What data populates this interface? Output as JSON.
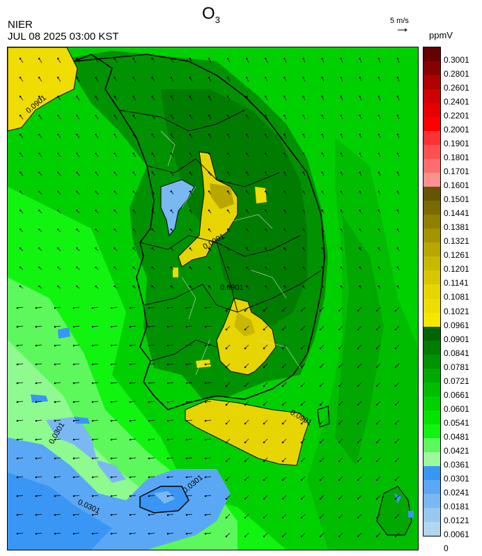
{
  "header": {
    "pollutant": "O",
    "pollutant_sub": "3",
    "agency": "NIER",
    "datetime": "JUL 08 2025 03:00 KST",
    "wind_reference": "5 m/s",
    "unit": "ppmV"
  },
  "contour_labels": [
    "0.0901",
    "0.0901",
    "0.0901",
    "0.0901",
    "0.0301",
    "0.0301",
    "0.0301"
  ],
  "legend": {
    "labels": [
      "0.3001",
      "0.2801",
      "0.2601",
      "0.2401",
      "0.2201",
      "0.2001",
      "0.1901",
      "0.1801",
      "0.1701",
      "0.1601",
      "0.1501",
      "0.1441",
      "0.1381",
      "0.1321",
      "0.1261",
      "0.1201",
      "0.1141",
      "0.1081",
      "0.1021",
      "0.0961",
      "0.0901",
      "0.0841",
      "0.0781",
      "0.0721",
      "0.0661",
      "0.0601",
      "0.0541",
      "0.0481",
      "0.0421",
      "0.0361",
      "0.0301",
      "0.0241",
      "0.0181",
      "0.0121",
      "0.0061",
      "0"
    ],
    "colors": [
      "#650000",
      "#8a0000",
      "#b00000",
      "#cf0000",
      "#e80000",
      "#ff0000",
      "#ff3232",
      "#ff5050",
      "#ff6e6e",
      "#ff9090",
      "#655500",
      "#7a6b00",
      "#8f8000",
      "#a39400",
      "#b7a700",
      "#c8b800",
      "#d8c700",
      "#e6d500",
      "#efdc00",
      "#f7e700",
      "#006400",
      "#007c00",
      "#009200",
      "#00a800",
      "#00bd00",
      "#00d000",
      "#00e400",
      "#10f410",
      "#5cf85c",
      "#9cfa9c",
      "#3a96f5",
      "#5aa8f5",
      "#7ab8f2",
      "#98c8f0",
      "#b0d6f0"
    ]
  }
}
